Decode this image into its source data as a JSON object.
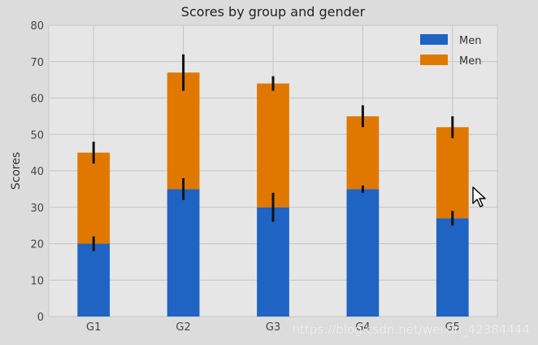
{
  "chart_data": {
    "type": "bar",
    "stacked": true,
    "title": "Scores by group and gender",
    "ylabel": "Scores",
    "xlabel": "",
    "categories": [
      "G1",
      "G2",
      "G3",
      "G4",
      "G5"
    ],
    "ylim": [
      0,
      80
    ],
    "yticks": [
      0,
      10,
      20,
      30,
      40,
      50,
      60,
      70,
      80
    ],
    "grid": true,
    "legend_position": "top-right",
    "series": [
      {
        "name": "Men",
        "values": [
          20,
          35,
          30,
          35,
          27
        ],
        "errors": [
          2,
          3,
          4,
          1,
          2
        ],
        "color": "#1f63c3"
      },
      {
        "name": "Men",
        "values": [
          25,
          32,
          34,
          20,
          25
        ],
        "errors": [
          3,
          5,
          2,
          3,
          3
        ],
        "color": "#e07800"
      }
    ]
  },
  "watermark": "https://blog.csdn.net/weixin_42384444"
}
